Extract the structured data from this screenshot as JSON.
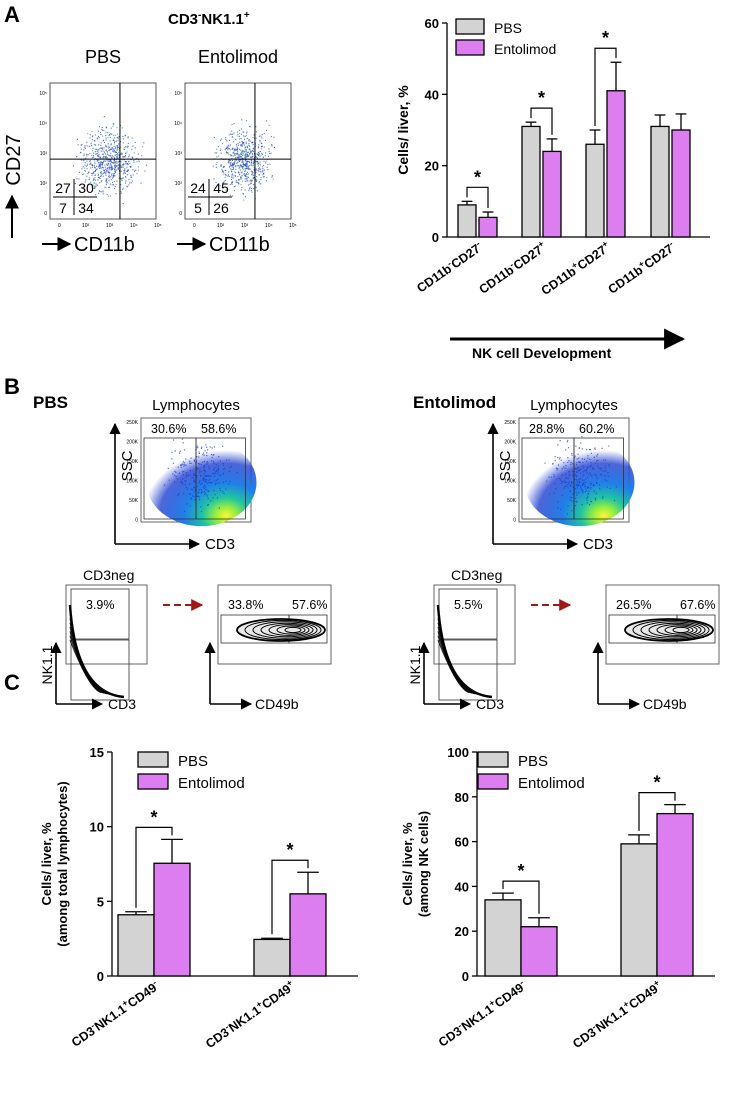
{
  "colors": {
    "pbs": "#d3d3d3",
    "entolimod": "#dc7df0",
    "gate_arrow": "#a01818"
  },
  "panel_a": {
    "letter": "A",
    "title_prefix": "CD3",
    "title_sup1": "-",
    "title_main": "NK1.1",
    "title_sup2": "+",
    "flow": {
      "y_label": "CD27",
      "x_label": "CD11b",
      "plots": [
        {
          "label": "PBS",
          "quadrants": [
            "27",
            "30",
            "7",
            "34"
          ]
        },
        {
          "label": "Entolimod",
          "quadrants": [
            "24",
            "45",
            "5",
            "26"
          ]
        }
      ],
      "decades": [
        "0",
        "10²",
        "10³",
        "10⁴",
        "10⁵"
      ]
    },
    "development_label": "NK cell  Development"
  },
  "panel_b": {
    "letter": "B",
    "groups": [
      {
        "title": "PBS",
        "scatter": {
          "title": "Lymphocytes",
          "left_pct": "30.6%",
          "right_pct": "58.6%",
          "y_label": "SSC",
          "x_label": "CD3",
          "yticks": [
            "250K",
            "200K",
            "150K",
            "100K",
            "50K",
            "0"
          ]
        },
        "cd3neg": {
          "title": "CD3neg",
          "pct": "3.9%",
          "y_label": "NK1.1",
          "x_label": "CD3"
        },
        "cd49b": {
          "left_pct": "33.8%",
          "right_pct": "57.6%",
          "x_label": "CD49b"
        }
      },
      {
        "title": "Entolimod",
        "scatter": {
          "title": "Lymphocytes",
          "left_pct": "28.8%",
          "right_pct": "60.2%",
          "y_label": "SSC",
          "x_label": "CD3",
          "yticks": [
            "250K",
            "200K",
            "150K",
            "100K",
            "50K",
            "0"
          ]
        },
        "cd3neg": {
          "title": "CD3neg",
          "pct": "5.5%",
          "y_label": "NK1.1",
          "x_label": "CD3"
        },
        "cd49b": {
          "left_pct": "26.5%",
          "right_pct": "67.6%",
          "x_label": "CD49b"
        }
      }
    ]
  },
  "panel_c": {
    "letter": "C"
  },
  "chart_data": [
    {
      "type": "bar",
      "title": "",
      "ylabel": "Cells/ liver, %",
      "ylim": [
        0,
        60
      ],
      "yticks": [
        "0",
        "20",
        "40",
        "60"
      ],
      "legend": [
        "PBS",
        "Entolimod"
      ],
      "categories": [
        {
          "main": "CD11b",
          "sup1": "-",
          "mid": "CD27",
          "sup2": "-"
        },
        {
          "main": "CD11b",
          "sup1": "-",
          "mid": "CD27",
          "sup2": "+"
        },
        {
          "main": "CD11b",
          "sup1": "+",
          "mid": "CD27",
          "sup2": "+"
        },
        {
          "main": "CD11b",
          "sup1": "+",
          "mid": "CD27",
          "sup2": "-"
        }
      ],
      "series": [
        {
          "name": "PBS",
          "values": [
            9,
            31,
            26,
            31
          ],
          "errors": [
            1,
            1.2,
            4,
            3.2
          ]
        },
        {
          "name": "Entolimod",
          "values": [
            5.5,
            24,
            41,
            30
          ],
          "errors": [
            1.5,
            3.5,
            8,
            4.5
          ]
        }
      ],
      "significance": [
        {
          "index": 0,
          "label": "*"
        },
        {
          "index": 1,
          "label": "*"
        },
        {
          "index": 2,
          "label": "*"
        }
      ]
    },
    {
      "type": "bar",
      "title": "",
      "ylabel": "Cells/ liver, %",
      "ylabel2": "(among total lymphocytes)",
      "ylim": [
        0,
        15
      ],
      "yticks": [
        "0",
        "5",
        "10",
        "15"
      ],
      "legend": [
        "PBS",
        "Entolimod"
      ],
      "categories": [
        {
          "pre": "CD3",
          "sup0": "-",
          "main": "NK1.1",
          "sup1": "+",
          "mid": "CD49",
          "sup2": "-"
        },
        {
          "pre": "CD3",
          "sup0": "-",
          "main": "NK1.1",
          "sup1": "+",
          "mid": "CD49",
          "sup2": "+"
        }
      ],
      "series": [
        {
          "name": "PBS",
          "values": [
            4.1,
            2.45
          ],
          "errors": [
            0.2,
            0.08
          ]
        },
        {
          "name": "Entolimod",
          "values": [
            7.55,
            5.5
          ],
          "errors": [
            1.6,
            1.45
          ]
        }
      ],
      "significance": [
        {
          "index": 0,
          "label": "*"
        },
        {
          "index": 1,
          "label": "*"
        }
      ]
    },
    {
      "type": "bar",
      "title": "",
      "ylabel": "Cells/ liver, %",
      "ylabel2": "(among NK cells)",
      "ylim": [
        0,
        100
      ],
      "yticks": [
        "0",
        "20",
        "40",
        "60",
        "80",
        "100"
      ],
      "legend": [
        "PBS",
        "Entolimod"
      ],
      "categories": [
        {
          "pre": "CD3",
          "sup0": "-",
          "main": "NK1.1",
          "sup1": "+",
          "mid": "CD49",
          "sup2": "-"
        },
        {
          "pre": "CD3",
          "sup0": "-",
          "main": "NK1.1",
          "sup1": "+",
          "mid": "CD49",
          "sup2": "+"
        }
      ],
      "series": [
        {
          "name": "PBS",
          "values": [
            34,
            59
          ],
          "errors": [
            3,
            4
          ]
        },
        {
          "name": "Entolimod",
          "values": [
            22,
            72.5
          ],
          "errors": [
            4,
            4
          ]
        }
      ],
      "significance": [
        {
          "index": 0,
          "label": "*"
        },
        {
          "index": 1,
          "label": "*"
        }
      ]
    }
  ]
}
